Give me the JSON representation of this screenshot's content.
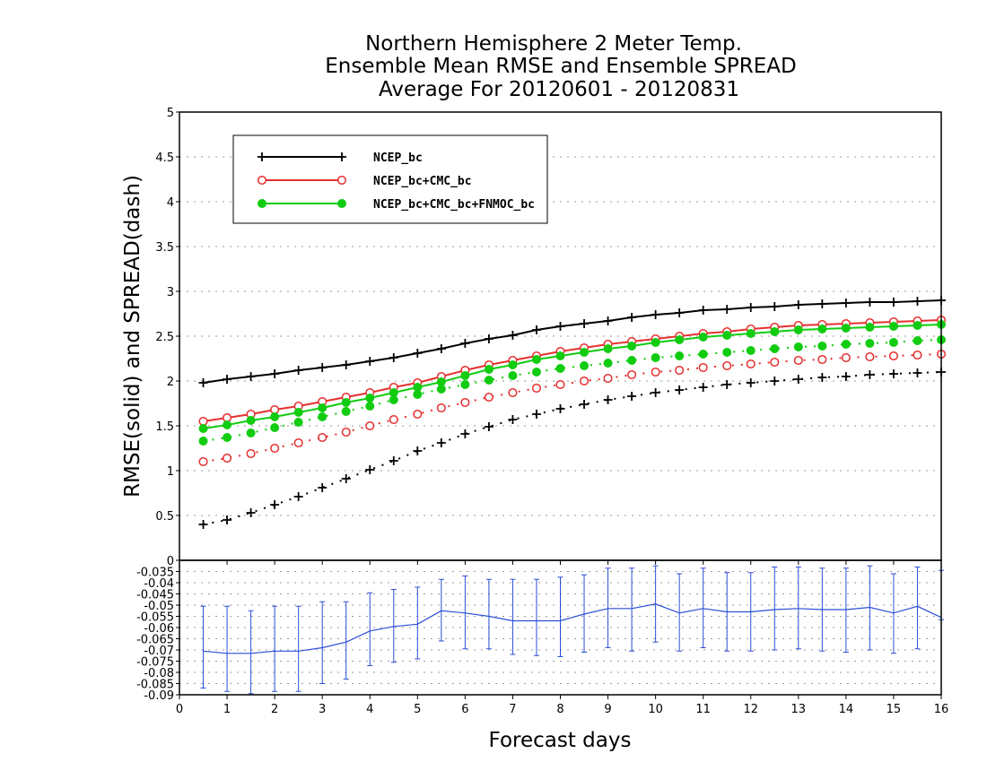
{
  "chart_data": {
    "type": "line",
    "title": [
      "Northern Hemisphere 2 Meter Temp.",
      "Ensemble Mean RMSE and Ensemble SPREAD",
      "Average For 20120601 - 20120831"
    ],
    "xlabel": "Forecast days",
    "ylabel": "RMSE(solid) and SPREAD(dash)",
    "xlim": [
      0,
      16
    ],
    "x_ticks": [
      "0",
      "1",
      "2",
      "3",
      "4",
      "5",
      "6",
      "7",
      "8",
      "9",
      "10",
      "11",
      "12",
      "13",
      "14",
      "15",
      "16"
    ],
    "x": [
      0.5,
      1,
      1.5,
      2,
      2.5,
      3,
      3.5,
      4,
      4.5,
      5,
      5.5,
      6,
      6.5,
      7,
      7.5,
      8,
      8.5,
      9,
      9.5,
      10,
      10.5,
      11,
      11.5,
      12,
      12.5,
      13,
      13.5,
      14,
      14.5,
      15,
      15.5,
      16
    ],
    "top_panel": {
      "ylim": [
        0,
        5
      ],
      "y_ticks": [
        "0",
        "0.5",
        "1",
        "1.5",
        "2",
        "2.5",
        "3",
        "3.5",
        "4",
        "4.5",
        "5"
      ],
      "grid": true,
      "legend_position": "top-left",
      "series": [
        {
          "name": "NCEP_bc",
          "color": "#000000",
          "marker": "plus",
          "rmse": [
            1.98,
            2.02,
            2.05,
            2.08,
            2.12,
            2.15,
            2.18,
            2.22,
            2.26,
            2.31,
            2.36,
            2.42,
            2.47,
            2.51,
            2.57,
            2.61,
            2.64,
            2.67,
            2.71,
            2.74,
            2.76,
            2.79,
            2.8,
            2.82,
            2.83,
            2.85,
            2.86,
            2.87,
            2.88,
            2.88,
            2.89,
            2.9
          ],
          "spread": [
            0.4,
            0.45,
            0.53,
            0.62,
            0.71,
            0.81,
            0.91,
            1.01,
            1.11,
            1.22,
            1.31,
            1.41,
            1.49,
            1.57,
            1.63,
            1.69,
            1.74,
            1.79,
            1.83,
            1.87,
            1.9,
            1.93,
            1.96,
            1.98,
            2.0,
            2.02,
            2.04,
            2.05,
            2.07,
            2.08,
            2.09,
            2.1
          ]
        },
        {
          "name": "NCEP_bc+CMC_bc",
          "color": "#e53030",
          "marker": "open-circle",
          "rmse": [
            1.55,
            1.59,
            1.63,
            1.68,
            1.72,
            1.77,
            1.82,
            1.87,
            1.93,
            1.98,
            2.05,
            2.12,
            2.18,
            2.23,
            2.28,
            2.33,
            2.37,
            2.41,
            2.44,
            2.47,
            2.5,
            2.53,
            2.55,
            2.58,
            2.6,
            2.62,
            2.63,
            2.64,
            2.65,
            2.66,
            2.67,
            2.68
          ],
          "spread": [
            1.1,
            1.14,
            1.19,
            1.25,
            1.31,
            1.37,
            1.43,
            1.5,
            1.57,
            1.63,
            1.7,
            1.76,
            1.82,
            1.87,
            1.92,
            1.96,
            2.0,
            2.03,
            2.07,
            2.1,
            2.12,
            2.15,
            2.17,
            2.19,
            2.21,
            2.23,
            2.24,
            2.26,
            2.27,
            2.28,
            2.29,
            2.3
          ]
        },
        {
          "name": "NCEP_bc+CMC_bc+FNMOC_bc",
          "color": "#11cc11",
          "marker": "filled-circle",
          "rmse": [
            1.47,
            1.51,
            1.56,
            1.6,
            1.65,
            1.7,
            1.76,
            1.81,
            1.87,
            1.93,
            1.99,
            2.06,
            2.13,
            2.18,
            2.24,
            2.28,
            2.32,
            2.36,
            2.39,
            2.43,
            2.46,
            2.49,
            2.51,
            2.53,
            2.55,
            2.57,
            2.58,
            2.59,
            2.6,
            2.61,
            2.62,
            2.63
          ],
          "spread": [
            1.33,
            1.37,
            1.42,
            1.48,
            1.54,
            1.6,
            1.66,
            1.72,
            1.79,
            1.85,
            1.91,
            1.96,
            2.01,
            2.06,
            2.1,
            2.14,
            2.17,
            2.2,
            2.23,
            2.26,
            2.28,
            2.3,
            2.32,
            2.34,
            2.36,
            2.38,
            2.39,
            2.41,
            2.42,
            2.43,
            2.45,
            2.46
          ]
        }
      ]
    },
    "bottom_panel": {
      "ylim": [
        -0.09,
        -0.03
      ],
      "y_ticks": [
        "-0.035",
        "-0.04",
        "-0.045",
        "-0.05",
        "-0.055",
        "-0.06",
        "-0.065",
        "-0.07",
        "-0.075",
        "-0.08",
        "-0.085",
        "-0.09"
      ],
      "grid": true,
      "color": "#2a4fd6",
      "values": [
        -0.0705,
        -0.0715,
        -0.0715,
        -0.0705,
        -0.0705,
        -0.069,
        -0.0665,
        -0.0615,
        -0.0595,
        -0.0585,
        -0.0525,
        -0.0535,
        -0.055,
        -0.057,
        -0.057,
        -0.057,
        -0.054,
        -0.0515,
        -0.0515,
        -0.0495,
        -0.0535,
        -0.0515,
        -0.053,
        -0.053,
        -0.052,
        -0.0515,
        -0.052,
        -0.052,
        -0.051,
        -0.0535,
        -0.0505,
        -0.0555
      ],
      "error_low": [
        -0.087,
        -0.0885,
        -0.0895,
        -0.0885,
        -0.0885,
        -0.085,
        -0.083,
        -0.077,
        -0.0755,
        -0.074,
        -0.066,
        -0.0695,
        -0.0695,
        -0.072,
        -0.0725,
        -0.073,
        -0.071,
        -0.069,
        -0.0705,
        -0.0665,
        -0.0705,
        -0.069,
        -0.0705,
        -0.0705,
        -0.07,
        -0.0695,
        -0.0705,
        -0.071,
        -0.07,
        -0.0715,
        -0.0695,
        -0.0565
      ],
      "error_high": [
        -0.0505,
        -0.0505,
        -0.0525,
        -0.0505,
        -0.0505,
        -0.0485,
        -0.0485,
        -0.0445,
        -0.043,
        -0.042,
        -0.0385,
        -0.037,
        -0.0385,
        -0.0385,
        -0.0385,
        -0.0375,
        -0.0365,
        -0.0335,
        -0.0335,
        -0.0325,
        -0.036,
        -0.0335,
        -0.0355,
        -0.0355,
        -0.033,
        -0.033,
        -0.0335,
        -0.0335,
        -0.0325,
        -0.036,
        -0.033,
        -0.0345
      ]
    }
  }
}
